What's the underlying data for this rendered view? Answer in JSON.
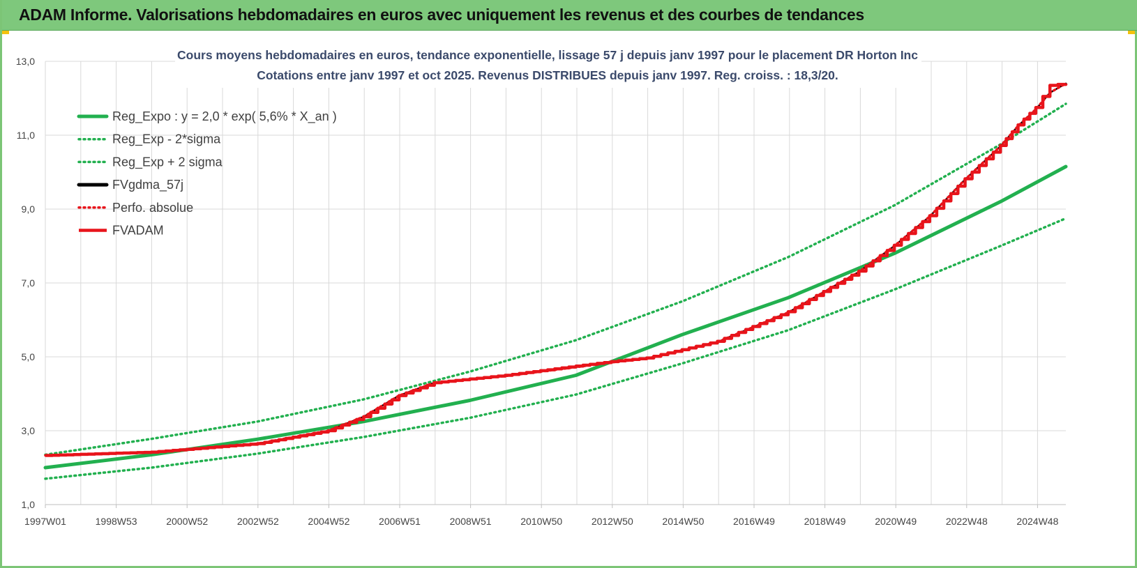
{
  "banner": {
    "title": "ADAM Informe. Valorisations hebdomadaires en euros avec uniquement les revenus et des courbes de tendances"
  },
  "colors": {
    "banner_bg": "#7ec87c",
    "reg_expo": "#22b04f",
    "fv_gdma": "#000000",
    "fv_adam": "#e8141b",
    "perfo_absolue": "#e8141b"
  },
  "chart_data": {
    "type": "line",
    "title": "Cours moyens hebdomadaires en euros, tendance exponentielle, lissage 57 j depuis janv 1997 pour le placement DR Horton Inc",
    "subtitle": "Cotations entre janv 1997 et oct 2025. Revenus DISTRIBUES depuis janv 1997.  Reg. croiss. : 18,3/20.",
    "xlabel": "",
    "ylabel": "",
    "ylim": [
      1.0,
      13.0
    ],
    "yticks": [
      "1,0",
      "3,0",
      "5,0",
      "7,0",
      "9,0",
      "11,0",
      "13,0"
    ],
    "x_tick_labels": [
      "1997W01",
      "1998W53",
      "2000W52",
      "2002W52",
      "2004W52",
      "2006W51",
      "2008W51",
      "2010W50",
      "2012W50",
      "2014W50",
      "2016W49",
      "2018W49",
      "2020W49",
      "2022W48",
      "2024W48"
    ],
    "xlim_years": [
      1997.0,
      2025.85
    ],
    "grid": true,
    "legend_position": "top-left",
    "series": [
      {
        "name": "Reg_Expo : y = 2,0 * exp( 5,6% *  X_an )",
        "style": "solid",
        "color": "#22b04f",
        "x": [
          1997.0,
          2000.0,
          2003.0,
          2006.0,
          2009.0,
          2012.0,
          2015.0,
          2018.0,
          2021.0,
          2024.0,
          2025.85
        ],
        "y": [
          2.0,
          2.35,
          2.77,
          3.25,
          3.82,
          4.5,
          5.6,
          6.6,
          7.8,
          9.2,
          10.15
        ]
      },
      {
        "name": "Reg_Exp - 2*sigma",
        "style": "dotted",
        "color": "#22b04f",
        "x": [
          1997.0,
          2000.0,
          2003.0,
          2006.0,
          2009.0,
          2012.0,
          2015.0,
          2018.0,
          2021.0,
          2024.0,
          2025.85
        ],
        "y": [
          1.7,
          2.0,
          2.38,
          2.83,
          3.35,
          3.98,
          4.82,
          5.72,
          6.82,
          8.0,
          8.75
        ]
      },
      {
        "name": "Reg_Exp + 2 sigma",
        "style": "dotted",
        "color": "#22b04f",
        "x": [
          1997.0,
          2000.0,
          2003.0,
          2006.0,
          2009.0,
          2012.0,
          2015.0,
          2018.0,
          2021.0,
          2024.0,
          2025.85
        ],
        "y": [
          2.35,
          2.78,
          3.25,
          3.85,
          4.6,
          5.45,
          6.5,
          7.7,
          9.1,
          10.75,
          11.85
        ]
      },
      {
        "name": "FVgdma_57j",
        "style": "solid",
        "color": "#000000",
        "x": [
          1997.0,
          2000.0,
          2003.0,
          2005.0,
          2006.0,
          2007.0,
          2008.0,
          2010.0,
          2012.0,
          2013.0,
          2014.0,
          2016.0,
          2018.0,
          2020.0,
          2021.0,
          2022.0,
          2023.0,
          2024.0,
          2024.5,
          2025.0,
          2025.4,
          2025.85
        ],
        "y": [
          2.33,
          2.42,
          2.65,
          3.0,
          3.38,
          3.95,
          4.3,
          4.48,
          4.72,
          4.85,
          4.95,
          5.4,
          6.2,
          7.3,
          8.0,
          8.8,
          9.8,
          10.7,
          11.25,
          11.7,
          12.15,
          12.4
        ]
      },
      {
        "name": "Perfo. absolue",
        "style": "dotted",
        "color": "#e8141b",
        "x": [
          1997.0,
          2000.0,
          2003.0,
          2005.0,
          2006.0,
          2007.0,
          2008.0,
          2010.0,
          2012.0,
          2013.0,
          2014.0,
          2016.0,
          2018.0,
          2020.0,
          2021.0,
          2022.0,
          2023.0,
          2024.0,
          2024.5,
          2025.0,
          2025.4,
          2025.85
        ],
        "y": [
          2.33,
          2.42,
          2.65,
          3.0,
          3.38,
          3.95,
          4.3,
          4.48,
          4.72,
          4.85,
          4.95,
          5.4,
          6.2,
          7.3,
          8.0,
          8.8,
          9.8,
          10.7,
          11.25,
          11.7,
          12.15,
          12.4
        ]
      },
      {
        "name": "FVADAM",
        "style": "solid-stepped",
        "color": "#e8141b",
        "x": [
          1997.0,
          2000.0,
          2003.0,
          2005.0,
          2006.0,
          2007.0,
          2008.0,
          2010.0,
          2012.0,
          2013.0,
          2014.0,
          2016.0,
          2018.0,
          2020.0,
          2021.0,
          2022.0,
          2023.0,
          2024.0,
          2024.5,
          2025.0,
          2025.4,
          2025.85
        ],
        "y": [
          2.33,
          2.42,
          2.65,
          3.0,
          3.38,
          3.95,
          4.3,
          4.5,
          4.75,
          4.87,
          4.97,
          5.42,
          6.22,
          7.32,
          8.02,
          8.82,
          9.82,
          10.72,
          11.28,
          11.75,
          12.35,
          12.4
        ]
      }
    ]
  }
}
